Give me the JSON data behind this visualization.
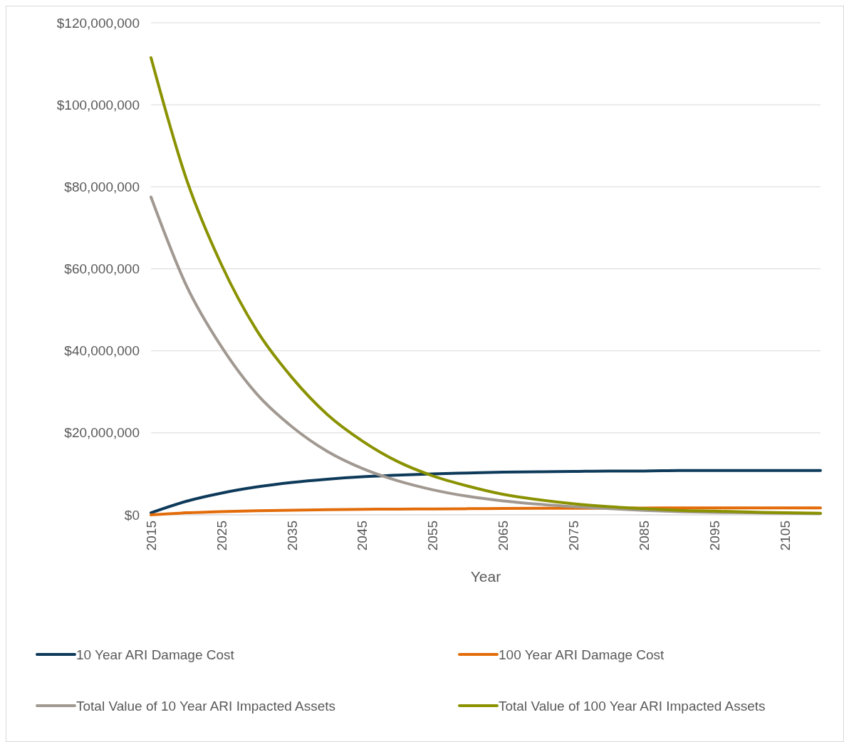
{
  "chart_data": {
    "type": "line",
    "xlabel": "Year",
    "x": [
      2015,
      2020,
      2025,
      2030,
      2035,
      2040,
      2045,
      2050,
      2055,
      2060,
      2065,
      2070,
      2075,
      2080,
      2085,
      2090,
      2095,
      2100,
      2105,
      2110
    ],
    "xlim": [
      2015,
      2110
    ],
    "xticks": [
      2015,
      2025,
      2035,
      2045,
      2055,
      2065,
      2075,
      2085,
      2095,
      2105
    ],
    "ylim": [
      0,
      120000000
    ],
    "yticks": [
      {
        "value": 0,
        "label": "$0"
      },
      {
        "value": 20000000,
        "label": "$20,000,000"
      },
      {
        "value": 40000000,
        "label": "$40,000,000"
      },
      {
        "value": 60000000,
        "label": "$60,000,000"
      },
      {
        "value": 80000000,
        "label": "$80,000,000"
      },
      {
        "value": 100000000,
        "label": "$100,000,000"
      },
      {
        "value": 120000000,
        "label": "$120,000,000"
      }
    ],
    "grid": "y",
    "legend": "bottom",
    "marker": "none",
    "line_style": "solid",
    "series": [
      {
        "name": "10 Year ARI Damage Cost",
        "color": "#0e3a5a",
        "values": [
          500000,
          3300000,
          5300000,
          6800000,
          7900000,
          8700000,
          9300000,
          9700000,
          10000000,
          10200000,
          10400000,
          10500000,
          10600000,
          10700000,
          10700000,
          10800000,
          10800000,
          10800000,
          10800000,
          10800000
        ]
      },
      {
        "name": "100 Year ARI Damage Cost",
        "color": "#e36c0a",
        "values": [
          0,
          500000,
          800000,
          1000000,
          1150000,
          1250000,
          1350000,
          1400000,
          1450000,
          1500000,
          1550000,
          1600000,
          1600000,
          1650000,
          1650000,
          1700000,
          1700000,
          1700000,
          1700000,
          1700000
        ]
      },
      {
        "name": "Total Value of 10 Year ARI Impacted Assets",
        "color": "#a19991",
        "values": [
          77500000,
          56000000,
          41000000,
          29500000,
          21500000,
          15500000,
          11300000,
          8300000,
          6100000,
          4500000,
          3400000,
          2600000,
          2000000,
          1500000,
          1100000,
          800000,
          600000,
          500000,
          400000,
          300000
        ]
      },
      {
        "name": "Total Value of 100 Year ARI Impacted Assets",
        "color": "#8a9200",
        "values": [
          111500000,
          82000000,
          61000000,
          45000000,
          33500000,
          24500000,
          18000000,
          13000000,
          9500000,
          7000000,
          5000000,
          3700000,
          2700000,
          2000000,
          1500000,
          1100000,
          900000,
          700000,
          500000,
          400000
        ]
      }
    ]
  }
}
